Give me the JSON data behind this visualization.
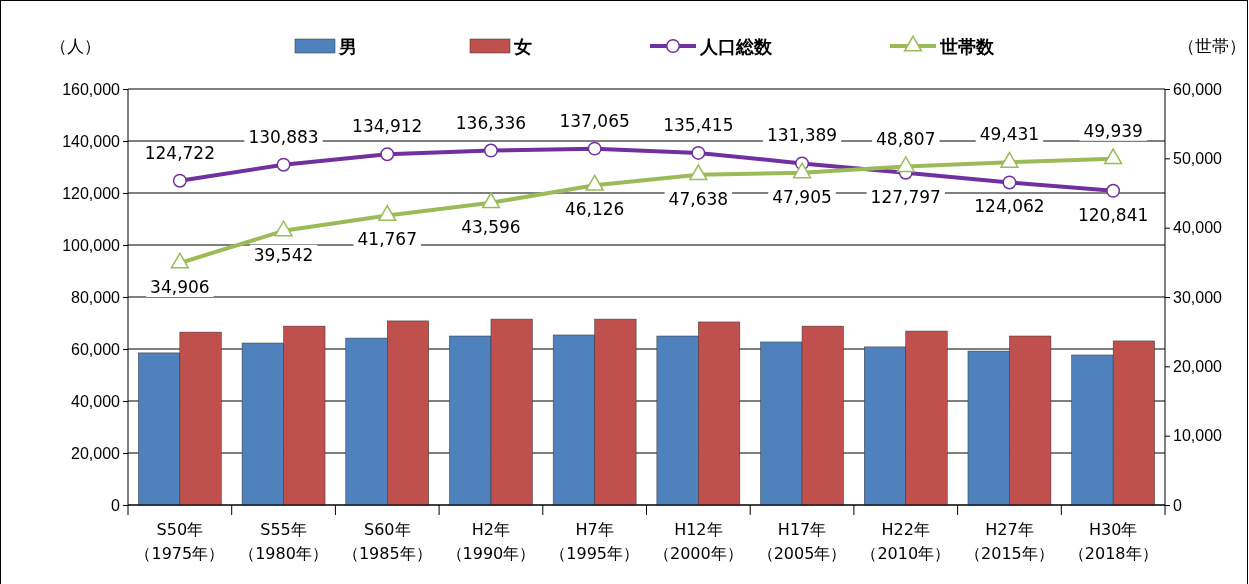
{
  "chart_data": {
    "type": "bar",
    "ylabel": "（人）",
    "y2label": "（世帯）",
    "categories": [
      "S50年（1975年）",
      "S55年（1980年）",
      "S60年（1985年）",
      "H2年（1990年）",
      "H7年（1995年）",
      "H12年（2000年）",
      "H17年（2005年）",
      "H22年（2010年）",
      "H27年（2015年）",
      "H30年（2018年）"
    ],
    "ylim": [
      0,
      160000
    ],
    "yticks": [
      {
        "value": 0,
        "label": "0"
      },
      {
        "value": 20000,
        "label": "20,000"
      },
      {
        "value": 40000,
        "label": "40,000"
      },
      {
        "value": 60000,
        "label": "60,000"
      },
      {
        "value": 80000,
        "label": "80,000"
      },
      {
        "value": 100000,
        "label": "100,000"
      },
      {
        "value": 120000,
        "label": "120,000"
      },
      {
        "value": 140000,
        "label": "140,000"
      },
      {
        "value": 160000,
        "label": "160,000"
      }
    ],
    "y2lim": [
      0,
      60000
    ],
    "y2ticks": [
      {
        "value": 0,
        "label": "0"
      },
      {
        "value": 10000,
        "label": "10,000"
      },
      {
        "value": 20000,
        "label": "20,000"
      },
      {
        "value": 30000,
        "label": "30,000"
      },
      {
        "value": 40000,
        "label": "40,000"
      },
      {
        "value": 50000,
        "label": "50,000"
      },
      {
        "value": 60000,
        "label": "60,000"
      }
    ],
    "grid": "y",
    "legend": "top",
    "series": [
      {
        "name": "男",
        "color": "#4f81bd",
        "values": [
          58500,
          62300,
          64200,
          65000,
          65400,
          65000,
          62700,
          60800,
          59200,
          57700
        ]
      },
      {
        "name": "女",
        "color": "#c0504d",
        "values": [
          66500,
          68800,
          70800,
          71500,
          71500,
          70400,
          68800,
          66900,
          65000,
          63100
        ]
      },
      {
        "name": "人口総数",
        "type": "line",
        "color": "#7030a0",
        "marker": "circle",
        "values": [
          124722,
          130883,
          134912,
          136336,
          137065,
          135415,
          131389,
          127797,
          124062,
          120841
        ],
        "value_labels": [
          "124,722",
          "130,883",
          "134,912",
          "136,336",
          "137,065",
          "135,415",
          "131,389",
          "127,797",
          "124,062",
          "120,841"
        ]
      },
      {
        "name": "世帯数",
        "type": "line",
        "axis": "y2",
        "color": "#9bbb59",
        "marker": "triangle",
        "values": [
          34906,
          39542,
          41767,
          43596,
          46126,
          47638,
          47905,
          48807,
          49431,
          49939
        ],
        "value_labels": [
          "34,906",
          "39,542",
          "41,767",
          "43,596",
          "46,126",
          "47,638",
          "47,905",
          "48,807",
          "49,431",
          "49,939"
        ]
      }
    ]
  }
}
